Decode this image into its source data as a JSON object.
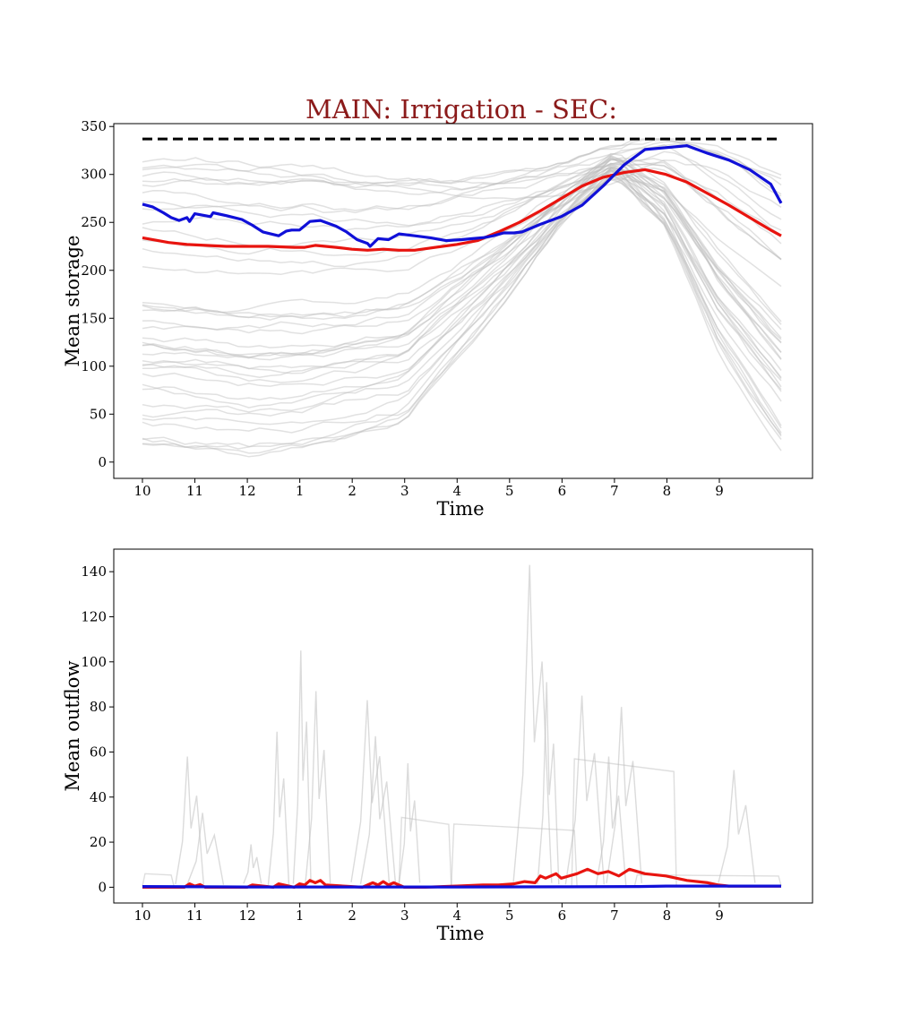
{
  "figure": {
    "title": "MAIN: Irrigation - SEC:",
    "title_color": "#8b1a1a"
  },
  "colors": {
    "red_line": "#e8140f",
    "blue_line": "#1010d8",
    "bg_lines": "#bdbdbd",
    "capacity_line": "#000000"
  },
  "chart_data": [
    {
      "type": "line",
      "id": "storage",
      "title": "MAIN: Irrigation - SEC:",
      "xlabel": "Time",
      "ylabel": "Mean storage",
      "x_ticks": [
        "10",
        "11",
        "12",
        "1",
        "2",
        "3",
        "4",
        "5",
        "6",
        "7",
        "8",
        "9"
      ],
      "x_domain": [
        0,
        12.2
      ],
      "y_ticks": [
        0,
        50,
        100,
        150,
        200,
        250,
        300,
        350
      ],
      "ylim": [
        -17,
        353
      ],
      "grid": false,
      "capacity": 337,
      "series": [
        {
          "key": "red",
          "x": [
            0,
            0.5,
            0.85,
            1.2,
            1.6,
            2.0,
            2.4,
            2.9,
            3.1,
            3.3,
            3.7,
            4.0,
            4.3,
            4.6,
            4.9,
            5.2,
            5.6,
            6.0,
            6.4,
            6.8,
            7.2,
            7.6,
            8.0,
            8.4,
            8.8,
            9.2,
            9.6,
            10.0,
            10.4,
            10.8,
            11.2,
            11.6,
            12.0,
            12.2
          ],
          "y": [
            234,
            229,
            227,
            226,
            225,
            225,
            225,
            224,
            224,
            226,
            224,
            222,
            221,
            222,
            221,
            221,
            224,
            227,
            231,
            240,
            250,
            262,
            275,
            288,
            297,
            302,
            305,
            300,
            292,
            280,
            268,
            255,
            242,
            236
          ]
        },
        {
          "key": "blue",
          "x": [
            0,
            0.2,
            0.4,
            0.55,
            0.7,
            0.85,
            0.9,
            1.0,
            1.3,
            1.35,
            1.6,
            1.9,
            2.1,
            2.3,
            2.6,
            2.75,
            2.85,
            3.0,
            3.2,
            3.4,
            3.7,
            3.9,
            4.1,
            4.3,
            4.35,
            4.5,
            4.7,
            4.9,
            5.2,
            5.5,
            5.8,
            6.1,
            6.3,
            6.5,
            6.7,
            6.9,
            7.1,
            7.25,
            7.6,
            8.0,
            8.4,
            8.8,
            9.2,
            9.6,
            10.0,
            10.4,
            10.8,
            11.2,
            11.6,
            12.0,
            12.2
          ],
          "y": [
            269,
            266,
            260,
            255,
            252,
            255,
            251,
            259,
            256,
            260,
            257,
            253,
            247,
            240,
            236,
            241,
            242,
            242,
            251,
            252,
            246,
            240,
            232,
            228,
            225,
            233,
            232,
            238,
            236,
            234,
            231,
            232,
            233,
            234,
            236,
            239,
            239,
            240,
            248,
            256,
            268,
            288,
            310,
            326,
            328,
            330,
            322,
            315,
            305,
            290,
            270
          ]
        },
        {
          "key": "gray_ensemble",
          "note": "approximately 40 faint gray traces",
          "x": [
            0,
            1,
            2,
            3,
            4,
            5,
            6,
            7,
            8,
            9,
            10,
            11,
            12.2
          ],
          "bands_low": [
            15,
            10,
            5,
            10,
            25,
            40,
            110,
            180,
            260,
            320,
            250,
            120,
            15
          ],
          "bands_high": [
            320,
            320,
            315,
            315,
            305,
            305,
            300,
            300,
            300,
            310,
            335,
            330,
            300
          ]
        }
      ]
    },
    {
      "type": "line",
      "id": "outflow",
      "xlabel": "Time",
      "ylabel": "Mean outflow",
      "x_ticks": [
        "10",
        "11",
        "12",
        "1",
        "2",
        "3",
        "4",
        "5",
        "6",
        "7",
        "8",
        "9"
      ],
      "x_domain": [
        0,
        12.2
      ],
      "y_ticks": [
        0,
        20,
        40,
        60,
        80,
        100,
        120,
        140
      ],
      "ylim": [
        -7,
        150
      ],
      "grid": false,
      "series": [
        {
          "key": "red",
          "x": [
            0,
            0.8,
            0.9,
            1.0,
            1.1,
            1.2,
            2.0,
            2.1,
            2.5,
            2.6,
            2.9,
            3.0,
            3.1,
            3.2,
            3.3,
            3.4,
            3.5,
            4.2,
            4.4,
            4.5,
            4.6,
            4.7,
            4.8,
            5.0,
            5.4,
            6.0,
            6.5,
            6.8,
            7.1,
            7.3,
            7.5,
            7.6,
            7.7,
            7.9,
            8.0,
            8.3,
            8.5,
            8.7,
            8.9,
            9.1,
            9.3,
            9.6,
            10.0,
            10.4,
            10.8,
            11.0,
            11.2,
            11.6,
            12.2
          ],
          "y": [
            0,
            0,
            1.5,
            0.5,
            1.2,
            0,
            0,
            1,
            0,
            1.5,
            0,
            1.5,
            1,
            3,
            2,
            3,
            1,
            0,
            2,
            1,
            2.5,
            1,
            2,
            0,
            0,
            0.5,
            1,
            1,
            1.5,
            2.5,
            2,
            5,
            4,
            6,
            4,
            6,
            8,
            6,
            7,
            5,
            8,
            6,
            5,
            3,
            2,
            1,
            0.5,
            0.5,
            0.5
          ]
        },
        {
          "key": "blue",
          "x": [
            0,
            2,
            4,
            6,
            8,
            9.5,
            10,
            11,
            12.2
          ],
          "y": [
            0.3,
            0.1,
            0.1,
            0.1,
            0.2,
            0.3,
            0.5,
            0.5,
            0.5
          ]
        },
        {
          "key": "gray_ensemble",
          "note": "faint gray spike traces",
          "peaks": [
            {
              "x": 0.9,
              "y": 58
            },
            {
              "x": 1.2,
              "y": 33
            },
            {
              "x": 2.1,
              "y": 19
            },
            {
              "x": 2.6,
              "y": 69
            },
            {
              "x": 3.05,
              "y": 105
            },
            {
              "x": 3.35,
              "y": 87
            },
            {
              "x": 4.35,
              "y": 83
            },
            {
              "x": 4.5,
              "y": 67
            },
            {
              "x": 5.1,
              "y": 55
            },
            {
              "x": 7.45,
              "y": 143
            },
            {
              "x": 7.75,
              "y": 91
            },
            {
              "x": 8.45,
              "y": 85
            },
            {
              "x": 8.95,
              "y": 58
            },
            {
              "x": 9.2,
              "y": 80
            },
            {
              "x": 11.35,
              "y": 52
            }
          ]
        }
      ]
    }
  ]
}
